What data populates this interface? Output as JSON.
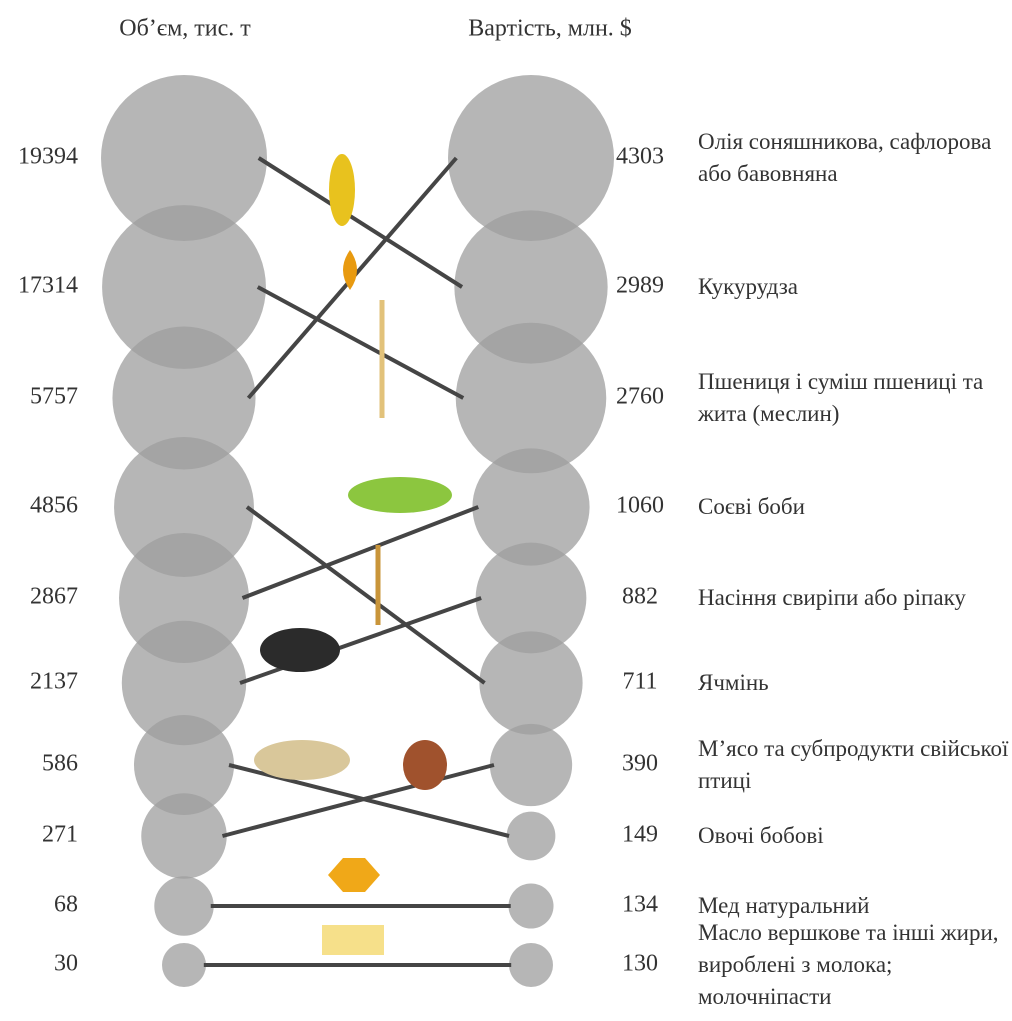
{
  "chart_data": {
    "type": "slope-bubble",
    "categories": [
      "Олія соняшникова, сафлорова або бавовняна",
      "Кукурудза",
      "Пшениця і суміш пшениці та жита (меслин)",
      "Соєві боби",
      "Насіння свиріпи або ріпаку",
      "Ячмінь",
      "М’ясо та субпродукти свійської птиці",
      "Овочі бобові",
      "Мед натуральний",
      "Масло вершкове та інші жири, вироблені з молока; молочніпасти"
    ],
    "series": [
      {
        "name": "Об’єм, тис. т",
        "color": "#9e9e9e",
        "values": [
          5757,
          19394,
          17314,
          2867,
          2137,
          4856,
          271,
          586,
          68,
          30
        ]
      },
      {
        "name": "Вартість, млн. $",
        "color": "#9e9e9e",
        "values": [
          4303,
          2989,
          2760,
          1060,
          882,
          711,
          390,
          149,
          134,
          130
        ]
      }
    ],
    "line_color": "#454545"
  }
}
